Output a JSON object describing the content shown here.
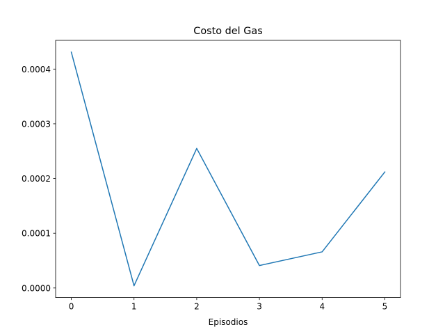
{
  "chart_data": {
    "type": "line",
    "title": "Costo del Gas",
    "xlabel": "Episodios",
    "ylabel": "",
    "x": [
      0,
      1,
      2,
      3,
      4,
      5
    ],
    "series": [
      {
        "values": [
          0.000431,
          4e-06,
          0.000255,
          4.1e-05,
          6.6e-05,
          0.000212
        ],
        "color": "#1f77b4"
      }
    ],
    "xlim": [
      -0.25,
      5.25
    ],
    "ylim": [
      -1.75e-05,
      0.0004525
    ],
    "xticks": [
      0,
      1,
      2,
      3,
      4,
      5
    ],
    "xtick_labels": [
      "0",
      "1",
      "2",
      "3",
      "4",
      "5"
    ],
    "yticks": [
      0,
      0.0001,
      0.0002,
      0.0003,
      0.0004
    ],
    "ytick_labels": [
      "0.0000",
      "0.0001",
      "0.0002",
      "0.0003",
      "0.0004"
    ],
    "grid": false,
    "legend": "none"
  }
}
